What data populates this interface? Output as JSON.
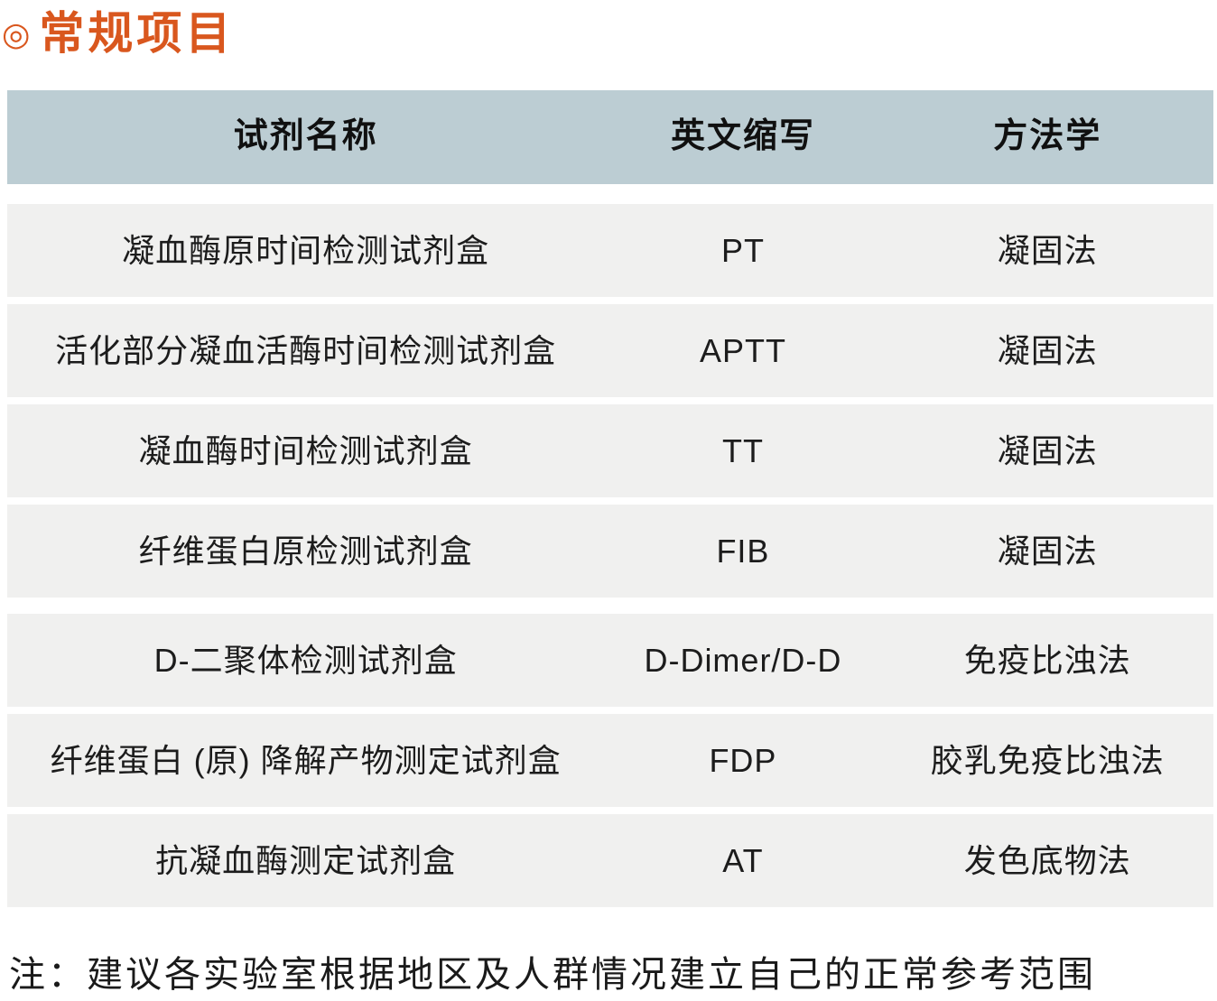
{
  "title": {
    "icon": "◎",
    "text": "常规项目"
  },
  "table": {
    "headers": [
      "试剂名称",
      "英文缩写",
      "方法学"
    ],
    "groups": [
      {
        "rows": [
          {
            "name": "凝血酶原时间检测试剂盒",
            "abbr": "PT",
            "method": "凝固法"
          },
          {
            "name": "活化部分凝血活酶时间检测试剂盒",
            "abbr": "APTT",
            "method": "凝固法"
          },
          {
            "name": "凝血酶时间检测试剂盒",
            "abbr": "TT",
            "method": "凝固法"
          },
          {
            "name": "纤维蛋白原检测试剂盒",
            "abbr": "FIB",
            "method": "凝固法"
          }
        ]
      },
      {
        "rows": [
          {
            "name": "D-二聚体检测试剂盒",
            "abbr": "D-Dimer/D-D",
            "method": "免疫比浊法"
          },
          {
            "name": "纤维蛋白 (原) 降解产物测定试剂盒",
            "abbr": "FDP",
            "method": "胶乳免疫比浊法"
          },
          {
            "name": "抗凝血酶测定试剂盒",
            "abbr": "AT",
            "method": "发色底物法"
          }
        ]
      }
    ]
  },
  "note": "注：建议各实验室根据地区及人群情况建立自己的正常参考范围",
  "colors": {
    "accent": "#d9571e",
    "header-bg": "#bccdd3",
    "row-bg": "#f0f0ef",
    "header-text": "#101010",
    "row-text": "#1c1c1c",
    "note-text": "#1a1a1a"
  }
}
